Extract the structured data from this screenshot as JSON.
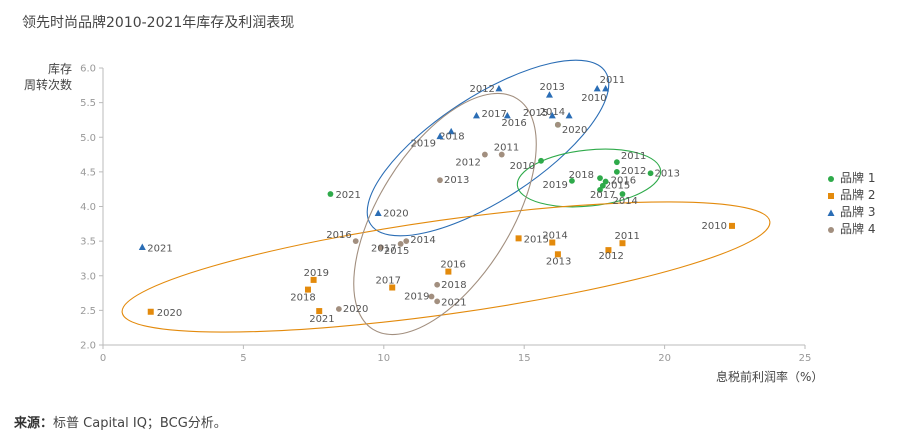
{
  "title": "领先时尚品牌2010-2021年库存及利润表现",
  "source_label": "来源：",
  "source_text": "标普 Capital IQ；BCG分析。",
  "chart_data": {
    "type": "scatter",
    "xlabel": "息税前利润率（%）",
    "ylabel_line1": "库存",
    "ylabel_line2": "周转次数",
    "xlim": [
      0,
      25
    ],
    "ylim": [
      2.0,
      6.0
    ],
    "xticks": [
      "0",
      "5",
      "10",
      "15",
      "20",
      "25"
    ],
    "yticks": [
      "2.0",
      "2.5",
      "3.0",
      "3.5",
      "4.0",
      "4.5",
      "5.0",
      "5.5",
      "6.0"
    ],
    "series": [
      {
        "name": "品牌 1",
        "color": "#2eaa4a",
        "marker": "circle",
        "points": [
          {
            "year": "2010",
            "x": 15.6,
            "y": 4.66
          },
          {
            "year": "2011",
            "x": 18.3,
            "y": 4.64
          },
          {
            "year": "2012",
            "x": 18.3,
            "y": 4.5
          },
          {
            "year": "2013",
            "x": 19.5,
            "y": 4.48
          },
          {
            "year": "2014",
            "x": 18.5,
            "y": 4.18
          },
          {
            "year": "2015",
            "x": 17.8,
            "y": 4.3
          },
          {
            "year": "2016",
            "x": 17.9,
            "y": 4.36
          },
          {
            "year": "2017",
            "x": 17.7,
            "y": 4.24
          },
          {
            "year": "2018",
            "x": 17.7,
            "y": 4.41
          },
          {
            "year": "2019",
            "x": 16.7,
            "y": 4.37
          },
          {
            "year": "2020",
            "x": 16.2,
            "y": 5.18
          },
          {
            "year": "2021",
            "x": 8.1,
            "y": 4.18
          }
        ]
      },
      {
        "name": "品牌 2",
        "color": "#e38a0c",
        "marker": "square",
        "points": [
          {
            "year": "2010",
            "x": 22.4,
            "y": 3.72
          },
          {
            "year": "2011",
            "x": 18.5,
            "y": 3.47
          },
          {
            "year": "2012",
            "x": 18.0,
            "y": 3.37
          },
          {
            "year": "2013",
            "x": 16.2,
            "y": 3.31
          },
          {
            "year": "2014",
            "x": 16.0,
            "y": 3.48
          },
          {
            "year": "2015",
            "x": 14.8,
            "y": 3.54
          },
          {
            "year": "2016",
            "x": 12.3,
            "y": 3.06
          },
          {
            "year": "2017",
            "x": 10.3,
            "y": 2.83
          },
          {
            "year": "2018",
            "x": 7.3,
            "y": 2.8
          },
          {
            "year": "2019",
            "x": 7.5,
            "y": 2.94
          },
          {
            "year": "2020",
            "x": 1.7,
            "y": 2.48
          },
          {
            "year": "2021",
            "x": 7.7,
            "y": 2.49
          }
        ]
      },
      {
        "name": "品牌 3",
        "color": "#2a6db5",
        "marker": "triangle",
        "points": [
          {
            "year": "2010",
            "x": 17.6,
            "y": 5.7
          },
          {
            "year": "2011",
            "x": 17.9,
            "y": 5.7
          },
          {
            "year": "2012",
            "x": 14.1,
            "y": 5.7
          },
          {
            "year": "2013",
            "x": 15.9,
            "y": 5.61
          },
          {
            "year": "2014",
            "x": 16.6,
            "y": 5.31
          },
          {
            "year": "2015",
            "x": 16.0,
            "y": 5.31
          },
          {
            "year": "2016",
            "x": 14.4,
            "y": 5.31
          },
          {
            "year": "2017",
            "x": 13.3,
            "y": 5.31
          },
          {
            "year": "2018",
            "x": 12.4,
            "y": 5.08
          },
          {
            "year": "2019",
            "x": 12.0,
            "y": 5.01
          },
          {
            "year": "2020",
            "x": 9.8,
            "y": 3.9
          },
          {
            "year": "2021",
            "x": 1.4,
            "y": 3.41
          }
        ]
      },
      {
        "name": "品牌 4",
        "color": "#a28f7f",
        "marker": "circle",
        "points": [
          {
            "year": "2010",
            "x": 16.2,
            "y": 5.18
          },
          {
            "year": "2011",
            "x": 14.2,
            "y": 4.75
          },
          {
            "year": "2012",
            "x": 13.6,
            "y": 4.75
          },
          {
            "year": "2013",
            "x": 12.0,
            "y": 4.38
          },
          {
            "year": "2014",
            "x": 10.8,
            "y": 3.5
          },
          {
            "year": "2015",
            "x": 10.6,
            "y": 3.46
          },
          {
            "year": "2016",
            "x": 9.0,
            "y": 3.5
          },
          {
            "year": "2017",
            "x": 9.9,
            "y": 3.41
          },
          {
            "year": "2018",
            "x": 11.9,
            "y": 2.87
          },
          {
            "year": "2019",
            "x": 11.7,
            "y": 2.7
          },
          {
            "year": "2020",
            "x": 8.4,
            "y": 2.52
          },
          {
            "year": "2021",
            "x": 11.9,
            "y": 2.63
          }
        ]
      }
    ]
  }
}
